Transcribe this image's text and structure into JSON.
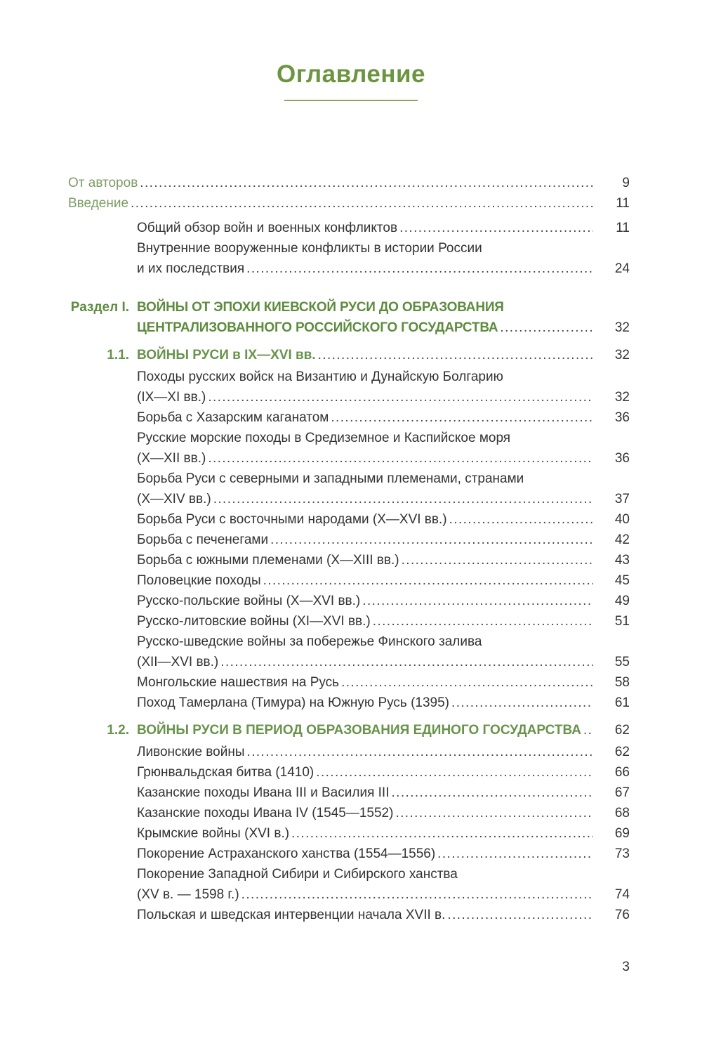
{
  "page": {
    "title": "Оглавление",
    "folio": "3"
  },
  "colors": {
    "accent_green": "#5d8c3e",
    "soft_green": "#7d9c64",
    "rule_green": "#8aa55e",
    "text": "#333333"
  },
  "toc": {
    "entries": [
      {
        "type": "top",
        "label": "",
        "lines": [
          "От авторов"
        ],
        "page": "9"
      },
      {
        "type": "top",
        "label": "",
        "lines": [
          "Введение"
        ],
        "page": "11"
      },
      {
        "type": "item",
        "label": "",
        "lines": [
          "Общий обзор войн и военных конфликтов"
        ],
        "page": "11"
      },
      {
        "type": "item",
        "label": "",
        "lines": [
          "Внутренние вооруженные конфликты в истории России",
          "и их последствия"
        ],
        "page": "24"
      },
      {
        "type": "chapter",
        "label": "Раздел I.",
        "lines": [
          "ВОЙНЫ ОТ ЭПОХИ КИЕВСКОЙ РУСИ ДО ОБРАЗОВАНИЯ",
          "ЦЕНТРАЛИЗОВАННОГО РОССИЙСКОГО ГОСУДАРСТВА"
        ],
        "page": "32"
      },
      {
        "type": "section",
        "label": "1.1.",
        "lines": [
          "ВОЙНЫ РУСИ в IX—XVI вв."
        ],
        "page": "32"
      },
      {
        "type": "item",
        "label": "",
        "lines": [
          "Походы русских войск на Византию и Дунайскую Болгарию",
          "(IX—XI вв.)"
        ],
        "page": "32"
      },
      {
        "type": "item",
        "label": "",
        "lines": [
          "Борьба с Хазарским каганатом"
        ],
        "page": "36"
      },
      {
        "type": "item",
        "label": "",
        "lines": [
          "Русские морские походы в Средиземное и Каспийское моря",
          "(X—XII вв.)"
        ],
        "page": "36"
      },
      {
        "type": "item",
        "label": "",
        "lines": [
          "Борьба Руси с северными и западными племенами, странами",
          "(X—XIV вв.)"
        ],
        "page": "37"
      },
      {
        "type": "item",
        "label": "",
        "lines": [
          "Борьба Руси с восточными народами (X—XVI вв.)"
        ],
        "page": "40"
      },
      {
        "type": "item",
        "label": "",
        "lines": [
          "Борьба с печенегами"
        ],
        "page": "42"
      },
      {
        "type": "item",
        "label": "",
        "lines": [
          "Борьба с южными племенами (X—XIII вв.)"
        ],
        "page": "43"
      },
      {
        "type": "item",
        "label": "",
        "lines": [
          "Половецкие походы"
        ],
        "page": "45"
      },
      {
        "type": "item",
        "label": "",
        "lines": [
          "Русско-польские войны (X—XVI вв.)"
        ],
        "page": "49"
      },
      {
        "type": "item",
        "label": "",
        "lines": [
          "Русско-литовские войны (XI—XVI вв.)"
        ],
        "page": "51"
      },
      {
        "type": "item",
        "label": "",
        "lines": [
          "Русско-шведские войны за побережье Финского залива",
          "(XII—XVI вв.)"
        ],
        "page": "55"
      },
      {
        "type": "item",
        "label": "",
        "lines": [
          "Монгольские нашествия на Русь"
        ],
        "page": "58"
      },
      {
        "type": "item",
        "label": "",
        "lines": [
          "Поход Тамерлана (Тимура) на Южную Русь (1395)"
        ],
        "page": "61"
      },
      {
        "type": "section",
        "label": "1.2.",
        "lines": [
          "ВОЙНЫ РУСИ В ПЕРИОД ОБРАЗОВАНИЯ ЕДИНОГО ГОСУДАРСТВА"
        ],
        "page": "62"
      },
      {
        "type": "item",
        "label": "",
        "lines": [
          "Ливонские войны"
        ],
        "page": "62"
      },
      {
        "type": "item",
        "label": "",
        "lines": [
          "Грюнвальдская битва (1410)"
        ],
        "page": "66"
      },
      {
        "type": "item",
        "label": "",
        "lines": [
          "Казанские походы Ивана III и Василия III"
        ],
        "page": "67"
      },
      {
        "type": "item",
        "label": "",
        "lines": [
          "Казанские походы Ивана IV (1545—1552)"
        ],
        "page": "68"
      },
      {
        "type": "item",
        "label": "",
        "lines": [
          "Крымские войны (XVI в.)"
        ],
        "page": "69"
      },
      {
        "type": "item",
        "label": "",
        "lines": [
          "Покорение Астраханского ханства (1554—1556)"
        ],
        "page": "73"
      },
      {
        "type": "item",
        "label": "",
        "lines": [
          "Покорение Западной Сибири и Сибирского ханства",
          "(XV в. — 1598 г.)"
        ],
        "page": "74"
      },
      {
        "type": "item",
        "label": "",
        "lines": [
          "Польская и шведская интервенции начала XVII в."
        ],
        "page": "76"
      }
    ]
  }
}
